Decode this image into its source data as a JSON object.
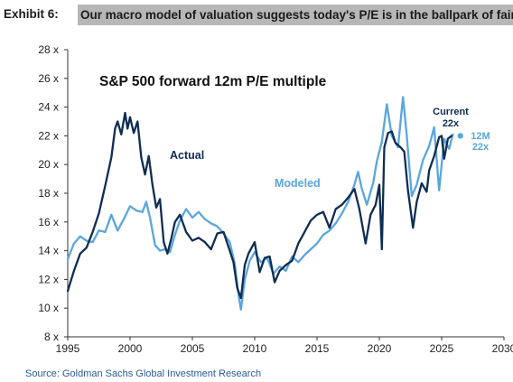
{
  "header": {
    "exhibit_label": "Exhibit 6:",
    "title": "Our macro model of valuation suggests today's P/E is in the ballpark of fair valu"
  },
  "source": "Source: Goldman Sachs Global Investment Research",
  "chart_data": {
    "type": "line",
    "title": "S&P 500 forward 12m P/E multiple",
    "xlabel": "",
    "ylabel": "",
    "xlim": [
      1995,
      2030
    ],
    "ylim": [
      8,
      28
    ],
    "x_ticks": [
      1995,
      2000,
      2005,
      2010,
      2015,
      2020,
      2025,
      2030
    ],
    "y_ticks": [
      8,
      10,
      12,
      14,
      16,
      18,
      20,
      22,
      24,
      26,
      28
    ],
    "x_tick_labels": [
      "1995",
      "2000",
      "2005",
      "2010",
      "2015",
      "2020",
      "2025",
      "2030"
    ],
    "y_tick_labels": [
      "8 x",
      "10 x",
      "12 x",
      "14 x",
      "16 x",
      "18 x",
      "20 x",
      "22 x",
      "24 x",
      "26 x",
      "28 x"
    ],
    "grid": false,
    "colors": {
      "actual": "#0f2d52",
      "modeled": "#5aa6dd",
      "axis": "#333333",
      "title": "#111111"
    },
    "series": [
      {
        "name": "Actual",
        "key": "actual",
        "points": [
          [
            1995.0,
            11.2
          ],
          [
            1995.5,
            12.6
          ],
          [
            1996.0,
            13.8
          ],
          [
            1996.5,
            14.2
          ],
          [
            1997.0,
            15.3
          ],
          [
            1997.5,
            16.6
          ],
          [
            1998.0,
            18.5
          ],
          [
            1998.5,
            20.5
          ],
          [
            1998.8,
            22.5
          ],
          [
            1999.0,
            23.0
          ],
          [
            1999.3,
            22.1
          ],
          [
            1999.6,
            23.6
          ],
          [
            1999.8,
            22.5
          ],
          [
            2000.0,
            23.3
          ],
          [
            2000.3,
            22.2
          ],
          [
            2000.6,
            23.0
          ],
          [
            2000.9,
            20.5
          ],
          [
            2001.2,
            19.3
          ],
          [
            2001.5,
            20.6
          ],
          [
            2001.8,
            18.6
          ],
          [
            2002.1,
            17.0
          ],
          [
            2002.4,
            17.6
          ],
          [
            2002.7,
            14.6
          ],
          [
            2003.0,
            13.8
          ],
          [
            2003.3,
            14.8
          ],
          [
            2003.6,
            16.0
          ],
          [
            2004.0,
            16.5
          ],
          [
            2004.5,
            15.3
          ],
          [
            2005.0,
            14.7
          ],
          [
            2005.5,
            14.9
          ],
          [
            2006.0,
            14.6
          ],
          [
            2006.5,
            14.1
          ],
          [
            2007.0,
            15.2
          ],
          [
            2007.5,
            15.3
          ],
          [
            2008.0,
            14.0
          ],
          [
            2008.3,
            13.2
          ],
          [
            2008.6,
            11.4
          ],
          [
            2008.9,
            10.7
          ],
          [
            2009.2,
            13.0
          ],
          [
            2009.5,
            13.8
          ],
          [
            2010.0,
            14.6
          ],
          [
            2010.4,
            12.5
          ],
          [
            2010.8,
            13.5
          ],
          [
            2011.2,
            13.6
          ],
          [
            2011.6,
            11.8
          ],
          [
            2012.0,
            12.6
          ],
          [
            2012.5,
            13.0
          ],
          [
            2013.0,
            13.3
          ],
          [
            2013.5,
            14.5
          ],
          [
            2014.0,
            15.3
          ],
          [
            2014.5,
            16.1
          ],
          [
            2015.0,
            16.5
          ],
          [
            2015.5,
            16.7
          ],
          [
            2016.0,
            15.6
          ],
          [
            2016.5,
            16.9
          ],
          [
            2017.0,
            17.2
          ],
          [
            2017.5,
            17.7
          ],
          [
            2018.0,
            18.3
          ],
          [
            2018.4,
            16.9
          ],
          [
            2018.9,
            14.5
          ],
          [
            2019.3,
            16.5
          ],
          [
            2019.7,
            17.2
          ],
          [
            2020.0,
            18.6
          ],
          [
            2020.2,
            14.1
          ],
          [
            2020.4,
            21.2
          ],
          [
            2020.7,
            22.2
          ],
          [
            2021.0,
            22.3
          ],
          [
            2021.3,
            21.5
          ],
          [
            2021.7,
            21.2
          ],
          [
            2022.0,
            20.9
          ],
          [
            2022.3,
            18.2
          ],
          [
            2022.7,
            15.6
          ],
          [
            2023.0,
            17.4
          ],
          [
            2023.4,
            18.7
          ],
          [
            2023.8,
            18.1
          ],
          [
            2024.0,
            19.6
          ],
          [
            2024.4,
            20.6
          ],
          [
            2024.8,
            21.9
          ],
          [
            2025.0,
            22.0
          ],
          [
            2025.2,
            20.4
          ],
          [
            2025.5,
            21.8
          ],
          [
            2025.8,
            22.0
          ]
        ]
      },
      {
        "name": "Modeled",
        "key": "modeled",
        "points": [
          [
            1995.0,
            13.4
          ],
          [
            1995.5,
            14.5
          ],
          [
            1996.0,
            15.0
          ],
          [
            1996.5,
            14.7
          ],
          [
            1997.0,
            14.6
          ],
          [
            1997.5,
            15.4
          ],
          [
            1998.0,
            15.3
          ],
          [
            1998.5,
            16.5
          ],
          [
            1999.0,
            15.4
          ],
          [
            1999.5,
            16.2
          ],
          [
            2000.0,
            17.1
          ],
          [
            2000.5,
            16.8
          ],
          [
            2001.0,
            16.7
          ],
          [
            2001.3,
            17.4
          ],
          [
            2001.6,
            16.3
          ],
          [
            2002.0,
            14.4
          ],
          [
            2002.4,
            14.0
          ],
          [
            2002.8,
            14.1
          ],
          [
            2003.2,
            13.9
          ],
          [
            2003.6,
            15.1
          ],
          [
            2004.0,
            16.1
          ],
          [
            2004.5,
            16.9
          ],
          [
            2005.0,
            16.3
          ],
          [
            2005.5,
            16.7
          ],
          [
            2006.0,
            16.2
          ],
          [
            2006.5,
            15.9
          ],
          [
            2007.0,
            15.7
          ],
          [
            2007.5,
            15.2
          ],
          [
            2008.0,
            14.6
          ],
          [
            2008.4,
            13.1
          ],
          [
            2008.7,
            10.9
          ],
          [
            2008.9,
            9.9
          ],
          [
            2009.2,
            12.0
          ],
          [
            2009.6,
            13.3
          ],
          [
            2010.0,
            13.9
          ],
          [
            2010.5,
            13.2
          ],
          [
            2011.0,
            13.5
          ],
          [
            2011.5,
            12.4
          ],
          [
            2012.0,
            12.9
          ],
          [
            2012.5,
            12.6
          ],
          [
            2013.0,
            13.6
          ],
          [
            2013.5,
            13.2
          ],
          [
            2014.0,
            13.7
          ],
          [
            2014.5,
            14.1
          ],
          [
            2015.0,
            14.5
          ],
          [
            2015.5,
            15.1
          ],
          [
            2016.0,
            15.4
          ],
          [
            2016.5,
            15.9
          ],
          [
            2017.0,
            16.6
          ],
          [
            2017.5,
            17.4
          ],
          [
            2018.0,
            18.6
          ],
          [
            2018.3,
            19.5
          ],
          [
            2018.6,
            18.3
          ],
          [
            2019.0,
            17.2
          ],
          [
            2019.5,
            18.7
          ],
          [
            2019.8,
            20.2
          ],
          [
            2020.2,
            21.6
          ],
          [
            2020.6,
            24.2
          ],
          [
            2021.0,
            22.0
          ],
          [
            2021.5,
            21.2
          ],
          [
            2021.9,
            24.7
          ],
          [
            2022.2,
            22.0
          ],
          [
            2022.6,
            17.8
          ],
          [
            2023.0,
            18.6
          ],
          [
            2023.5,
            20.3
          ],
          [
            2024.0,
            21.3
          ],
          [
            2024.4,
            22.6
          ],
          [
            2024.8,
            18.2
          ],
          [
            2025.2,
            21.8
          ],
          [
            2025.6,
            21.1
          ],
          [
            2025.9,
            22.1
          ]
        ]
      }
    ],
    "annotations": {
      "actual_label": "Actual",
      "modeled_label": "Modeled",
      "current_label": "Current",
      "current_value": "22x",
      "twelve_m_label": "12M",
      "twelve_m_value": "22x"
    },
    "marker_12m": {
      "x": 2026.5,
      "y": 22.0
    }
  }
}
